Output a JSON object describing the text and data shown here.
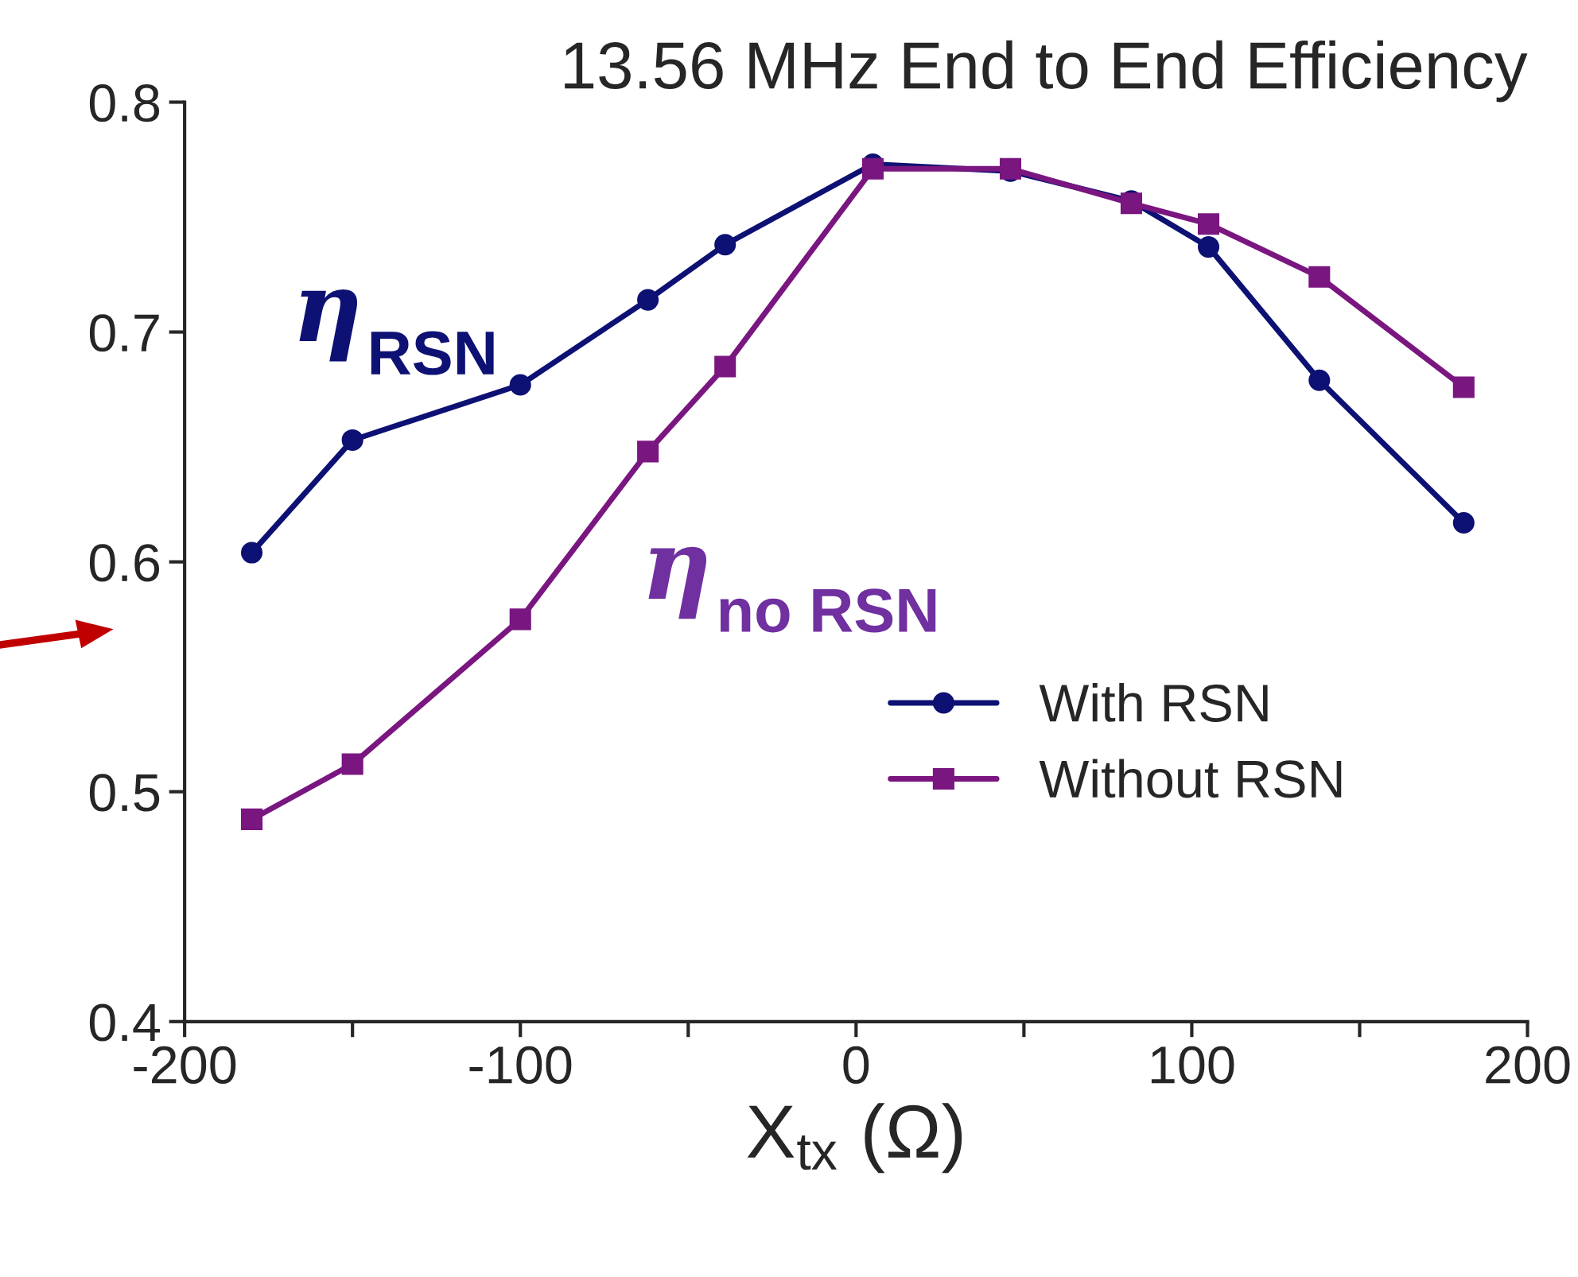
{
  "chart_data": {
    "type": "line",
    "title": "13.56 MHz End to End Efficiency",
    "xlabel": "X$_{tx}$ (Ω)",
    "x": [
      -180,
      -150,
      -100,
      -62,
      -39,
      5,
      46,
      82,
      105,
      138,
      181
    ],
    "series": [
      {
        "name": "With RSN",
        "color": "#0d1173",
        "marker": "circle",
        "values": [
          0.604,
          0.653,
          0.677,
          0.714,
          0.738,
          0.773,
          0.77,
          0.757,
          0.737,
          0.679,
          0.617
        ]
      },
      {
        "name": "Without RSN",
        "color": "#7a1680",
        "marker": "square",
        "values": [
          0.488,
          0.512,
          0.575,
          0.648,
          0.685,
          0.771,
          0.771,
          0.756,
          0.747,
          0.724,
          0.676
        ]
      }
    ],
    "annotations": [
      "η$_{RSN}$",
      "η$_{no RSN}$"
    ],
    "xlim": [
      -200,
      200
    ],
    "ylim": [
      0.4,
      0.8
    ],
    "xticks": [
      -200,
      {
        "value": -150,
        "label": null
      },
      -100,
      {
        "value": -50,
        "label": null
      },
      0,
      {
        "value": 50,
        "label": null
      },
      100,
      {
        "value": 150,
        "label": null
      },
      200
    ],
    "yticks": [
      0.4,
      0.5,
      0.6,
      0.7,
      0.8
    ],
    "grid": false,
    "legend": "bottom right",
    "line_style": "solid"
  }
}
